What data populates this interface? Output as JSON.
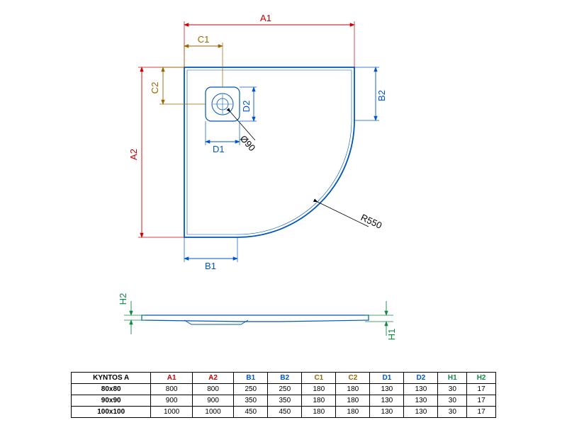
{
  "colors": {
    "outline": "#0055bb",
    "red": "#cc0000",
    "blue": "#0055cc",
    "brown": "#996600",
    "green": "#118844",
    "black": "#000000",
    "background": "#ffffff"
  },
  "diagram": {
    "radius_label": "R550",
    "drain_diameter_label": "Ø90",
    "labels": {
      "A1": "A1",
      "A2": "A2",
      "B1": "B1",
      "B2": "B2",
      "C1": "C1",
      "C2": "C2",
      "D1": "D1",
      "D2": "D2",
      "H1": "H1",
      "H2": "H2"
    }
  },
  "table": {
    "title": "KYNTOS A",
    "columns": [
      "A1",
      "A2",
      "B1",
      "B2",
      "C1",
      "C2",
      "D1",
      "D2",
      "H1",
      "H2"
    ],
    "column_colors": [
      "#cc0000",
      "#cc0000",
      "#0055cc",
      "#0055cc",
      "#996600",
      "#996600",
      "#0055cc",
      "#0055cc",
      "#118844",
      "#118844"
    ],
    "rows": [
      {
        "label": "80x80",
        "values": [
          800,
          800,
          250,
          250,
          180,
          180,
          130,
          130,
          30,
          17
        ]
      },
      {
        "label": "90x90",
        "values": [
          900,
          900,
          350,
          350,
          180,
          180,
          130,
          130,
          30,
          17
        ]
      },
      {
        "label": "100x100",
        "values": [
          1000,
          1000,
          450,
          450,
          180,
          180,
          130,
          130,
          30,
          17
        ]
      }
    ]
  },
  "profile": {
    "description": "side profile of shower tray"
  }
}
